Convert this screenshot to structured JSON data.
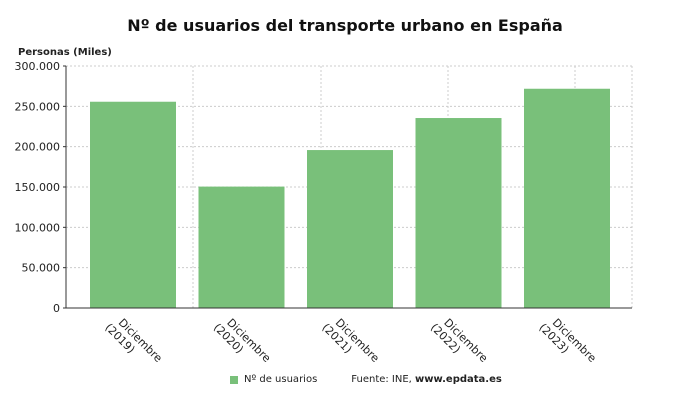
{
  "chart_data": {
    "type": "bar",
    "title": "Nº de usuarios del transporte urbano en España",
    "ylabel": "Personas (Miles)",
    "xlabel": "",
    "categories": [
      [
        "Diciembre",
        "(2019)"
      ],
      [
        "Diciembre",
        "(2020)"
      ],
      [
        "Diciembre",
        "(2021)"
      ],
      [
        "Diciembre",
        "(2022)"
      ],
      [
        "Diciembre",
        "(2023)"
      ]
    ],
    "series": [
      {
        "name": "Nº de usuarios",
        "values": [
          255700,
          150500,
          195800,
          235500,
          271800
        ],
        "color": "#79c07a"
      }
    ],
    "ylim": [
      0,
      300000
    ],
    "yticks": [
      "0",
      "50.000",
      "100.000",
      "150.000",
      "200.000",
      "250.000",
      "300.000"
    ],
    "grid": true,
    "legend": "bottom"
  },
  "source": {
    "prefix": "Fuente: INE, ",
    "site": "www.epdata.es"
  }
}
